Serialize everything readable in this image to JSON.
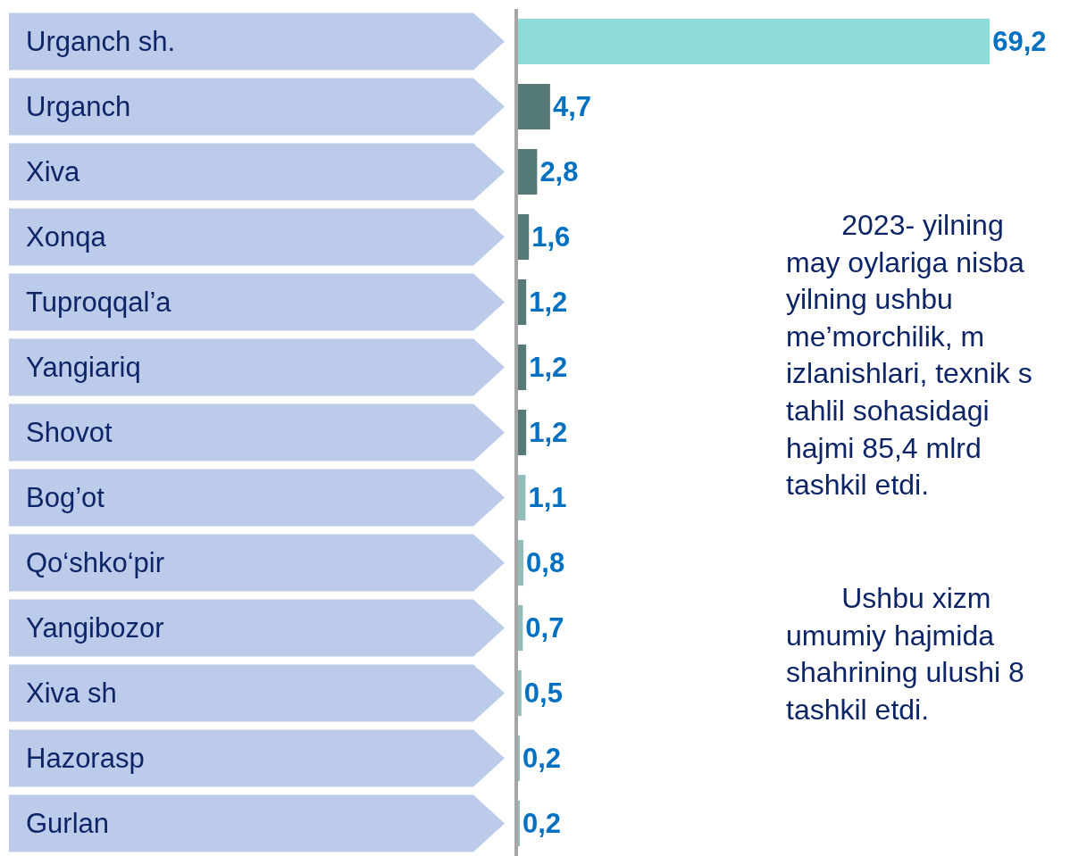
{
  "chart_data": {
    "type": "bar",
    "orientation": "horizontal",
    "categories": [
      "Urganch sh.",
      "Urganch",
      "Xiva",
      "Xonqa",
      "Tuproqqal’a",
      "Yangiariq",
      "Shovot",
      "Bog’ot",
      "Qo‘shko‘pir",
      "Yangibozor",
      "Xiva sh",
      "Hazorasp",
      "Gurlan"
    ],
    "values": [
      69.2,
      4.7,
      2.8,
      1.6,
      1.2,
      1.2,
      1.2,
      1.1,
      0.8,
      0.7,
      0.5,
      0.2,
      0.2
    ],
    "value_labels": [
      "69,2",
      "4,7",
      "2,8",
      "1,6",
      "1,2",
      "1,2",
      "1,2",
      "1,1",
      "0,8",
      "0,7",
      "0,5",
      "0,2",
      "0,2"
    ],
    "colors": [
      "#8edcd8",
      "#557a77",
      "#557a77",
      "#557a77",
      "#557a77",
      "#557a77",
      "#557a77",
      "#93bdba",
      "#93bdba",
      "#93bdba",
      "#93bdba",
      "#93bdba",
      "#93bdba"
    ],
    "tick_labels": "y",
    "annotations": [
      "2023- yilning\nmay oylariga nisba\nyilning ushbu\nme’morchilik, m\nizlanishlari, texnik s\ntahlil sohasidagi\nhajmi 85,4 mlrd\ntashkil etdi.",
      "Ushbu xizm\numumiy hajmida\nshahrining ulushi 8\ntashkil etdi."
    ]
  }
}
